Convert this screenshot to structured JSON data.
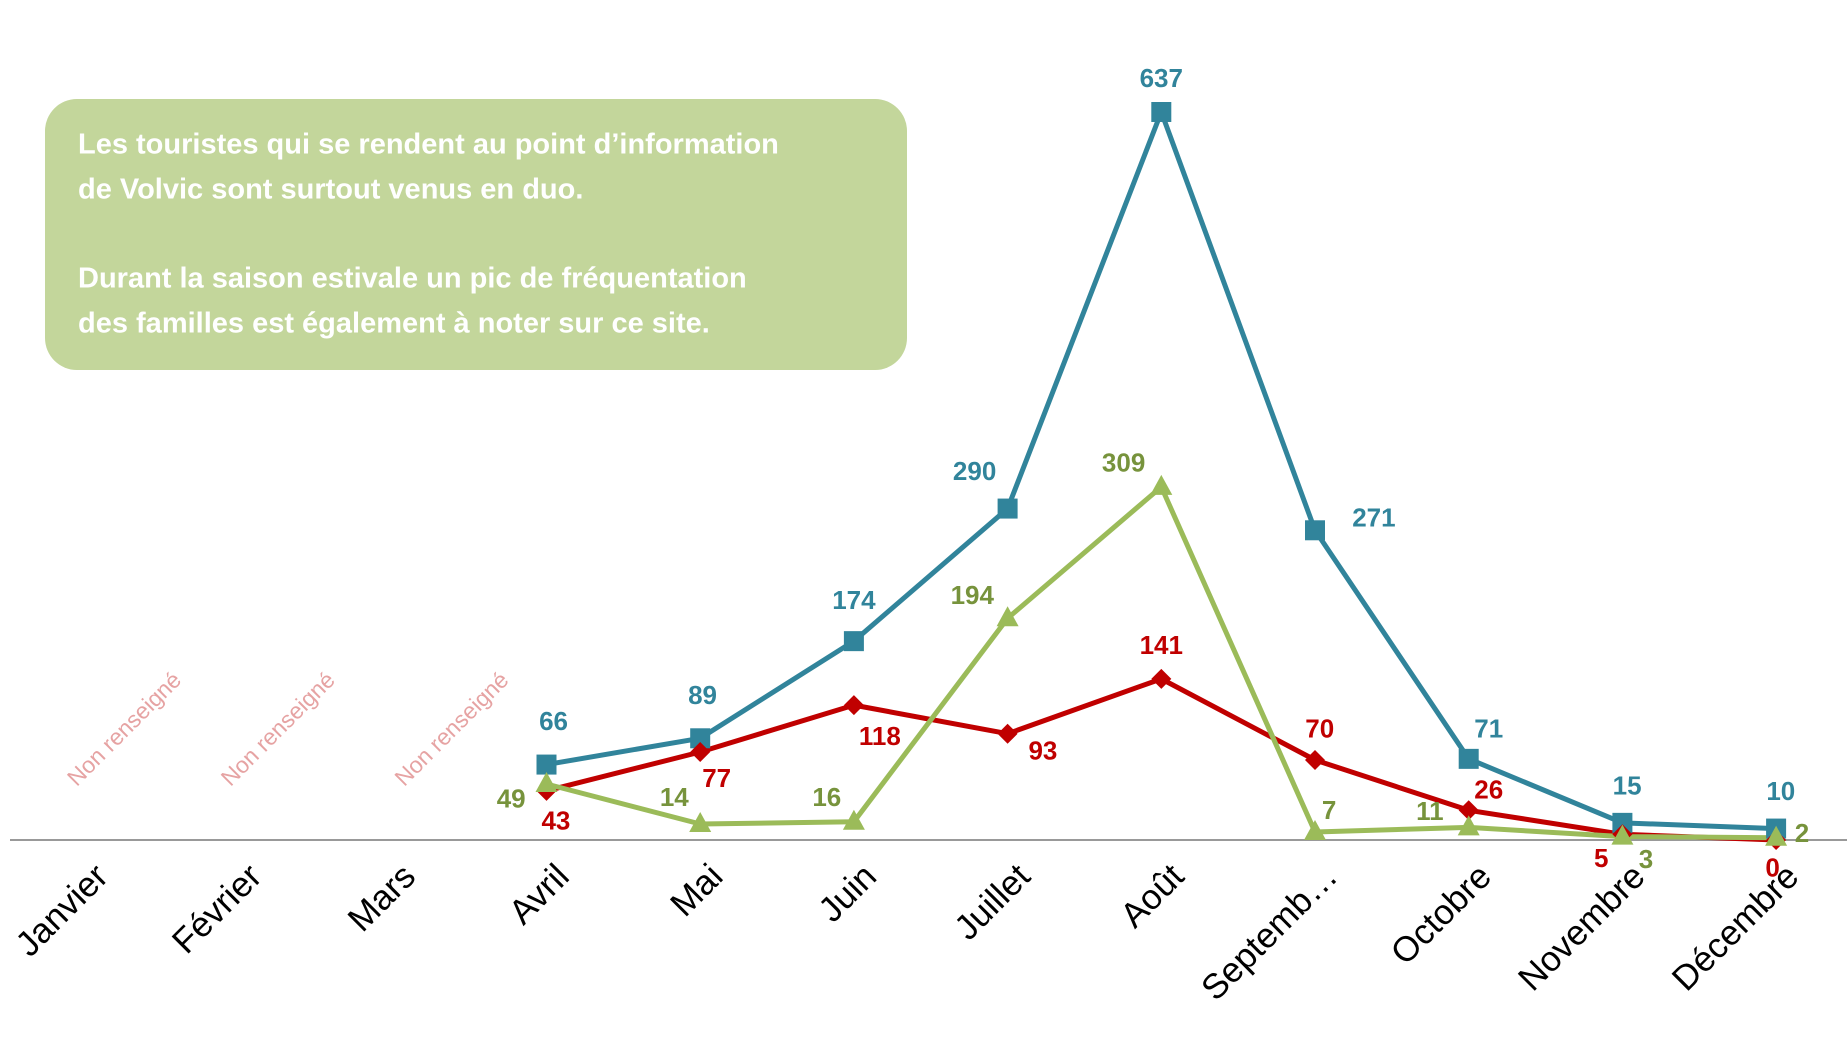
{
  "chart_data": {
    "type": "line",
    "categories": [
      "Janvier",
      "Février",
      "Mars",
      "Avril",
      "Mai",
      "Juin",
      "Juillet",
      "Août",
      "Septemb…",
      "Octobre",
      "Novembre",
      "Décembre"
    ],
    "series": [
      {
        "color": "#31849b",
        "marker": "square",
        "values": [
          null,
          null,
          null,
          66,
          89,
          174,
          290,
          637,
          271,
          71,
          15,
          10
        ]
      },
      {
        "color": "#c00000",
        "marker": "diamond",
        "values": [
          null,
          null,
          null,
          43,
          77,
          118,
          93,
          141,
          70,
          26,
          5,
          0
        ]
      },
      {
        "color": "#9bbb59",
        "label_color": "#77933c",
        "marker": "triangle",
        "values": [
          null,
          null,
          null,
          49,
          14,
          16,
          194,
          309,
          7,
          11,
          3,
          2
        ]
      }
    ],
    "annotations": [
      "Non renseigné",
      "Non renseigné",
      "Non renseigné"
    ],
    "ylim": [
      0,
      700
    ]
  },
  "text_box": {
    "paragraphs": [
      [
        "Les touristes qui se rendent au point d’information",
        "de Volvic sont surtout venus en duo."
      ],
      [
        "Durant la saison estivale un pic de fréquentation",
        "des familles est également à noter sur ce site."
      ]
    ]
  }
}
